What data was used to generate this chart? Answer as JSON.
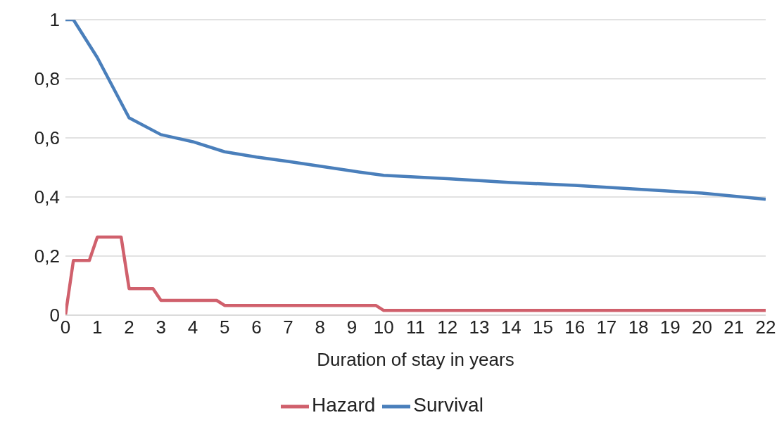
{
  "chart_data": {
    "type": "line",
    "xlabel": "Duration of stay in years",
    "xlim": [
      0,
      22
    ],
    "xticks": [
      0,
      1,
      2,
      3,
      4,
      5,
      6,
      7,
      8,
      9,
      10,
      11,
      12,
      13,
      14,
      15,
      16,
      17,
      18,
      19,
      20,
      21,
      22
    ],
    "ylim": [
      0,
      1
    ],
    "yticks": [
      0,
      {
        "value": 0.2,
        "label": "0,2"
      },
      {
        "value": 0.4,
        "label": "0,4"
      },
      {
        "value": 0.6,
        "label": "0,6"
      },
      {
        "value": 0.8,
        "label": "0,8"
      },
      1
    ],
    "grid": "y",
    "legend": "bottom",
    "marker": "none",
    "line_style": "solid",
    "series": [
      {
        "name": "Hazard",
        "color": "#d0606c",
        "x": [
          0,
          0.25,
          0.75,
          1,
          1.75,
          2,
          2.75,
          3,
          4.75,
          5,
          9.75,
          10,
          22
        ],
        "values": [
          0,
          0.185,
          0.185,
          0.264,
          0.264,
          0.09,
          0.09,
          0.05,
          0.05,
          0.033,
          0.033,
          0.016,
          0.016
        ]
      },
      {
        "name": "Survival",
        "color": "#4a7fbb",
        "x": [
          0,
          0.25,
          1,
          2,
          3,
          4,
          5,
          6,
          7,
          8,
          9,
          10,
          12,
          14,
          16,
          18,
          20,
          22
        ],
        "values": [
          1,
          1,
          0.872,
          0.668,
          0.611,
          0.587,
          0.553,
          0.535,
          0.52,
          0.504,
          0.488,
          0.473,
          0.462,
          0.449,
          0.439,
          0.426,
          0.413,
          0.392
        ]
      }
    ]
  }
}
